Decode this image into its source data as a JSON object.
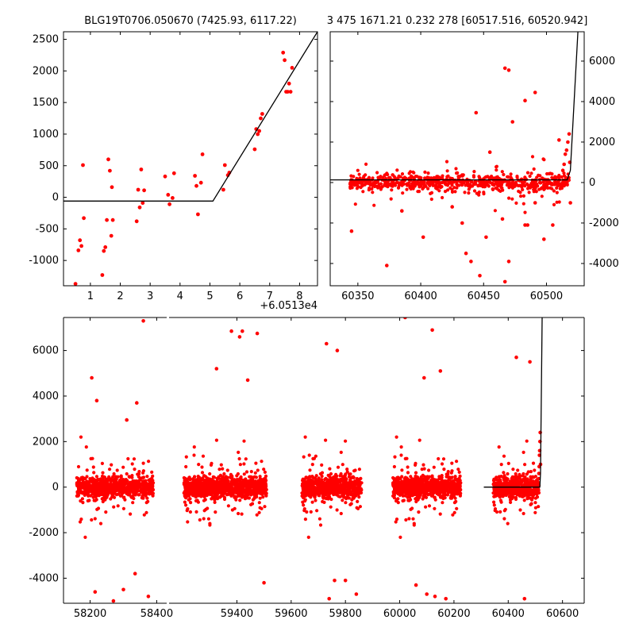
{
  "titles": {
    "left": "BLG19T0706.050670 (7425.93, 6117.22)",
    "right": "3 475 1671.21 0.232 278 [60517.516, 60520.942]"
  },
  "colors": {
    "points": "#ff0000",
    "model": "#000000",
    "frame": "#000000"
  },
  "chart_data": [
    {
      "type": "scatter",
      "panel": "top-left",
      "x_offset_label": "+6.0513e4",
      "xlim": [
        0.1,
        8.6
      ],
      "ylim": [
        -1400,
        2620
      ],
      "xticks": [
        1,
        2,
        3,
        4,
        5,
        6,
        7,
        8
      ],
      "yticks": [
        -1000,
        -500,
        0,
        500,
        1000,
        1500,
        2000,
        2500
      ],
      "grid": false,
      "series": [
        {
          "kind": "points",
          "x": [
            0.5,
            0.6,
            0.65,
            0.7,
            0.75,
            1.4,
            1.45,
            1.5,
            1.55,
            1.6,
            1.65,
            1.7,
            1.75,
            2.55,
            2.6,
            2.65,
            2.75,
            2.8,
            3.5,
            3.6,
            3.65,
            3.75,
            3.8,
            4.5,
            4.55,
            4.6,
            4.7,
            4.75,
            5.45,
            5.5,
            5.6,
            5.65,
            6.5,
            6.55,
            6.6,
            6.65,
            6.7,
            6.75,
            7.45,
            7.5,
            7.55,
            7.6,
            7.65,
            7.7,
            7.75,
            0.78,
            1.72,
            2.7
          ],
          "y": [
            -1370,
            -840,
            -680,
            -770,
            510,
            -1230,
            -850,
            -790,
            -360,
            600,
            420,
            -610,
            -360,
            -380,
            120,
            -160,
            -90,
            110,
            330,
            40,
            -110,
            -10,
            380,
            340,
            180,
            -270,
            230,
            680,
            120,
            510,
            350,
            390,
            760,
            1080,
            1000,
            1050,
            1250,
            1320,
            2290,
            2170,
            1670,
            1670,
            1800,
            1670,
            2050,
            -330,
            160,
            440
          ]
        },
        {
          "kind": "line",
          "x": [
            0.1,
            5.1,
            8.6
          ],
          "y": [
            -60,
            -60,
            2620
          ]
        }
      ]
    },
    {
      "type": "scatter",
      "panel": "top-right",
      "xlim": [
        60328,
        60530
      ],
      "ylim": [
        -5100,
        7450
      ],
      "xticks": [
        60350,
        60400,
        60450,
        60500
      ],
      "yticks": [
        -4000,
        -2000,
        0,
        2000,
        4000,
        6000
      ],
      "grid": false,
      "series": [
        {
          "kind": "points",
          "outliers_x": [
            60345,
            60373,
            60385,
            60402,
            60425,
            60433,
            60436,
            60440,
            60444,
            60447,
            60452,
            60455,
            60465,
            60467,
            60470,
            60473,
            60483,
            60485,
            60491,
            60498,
            60505,
            60510,
            60467,
            60470,
            60483,
            60491
          ],
          "outliers_y": [
            -2400,
            -4100,
            -1400,
            -2700,
            -1200,
            -2000,
            -3500,
            -3900,
            3450,
            -4600,
            -2700,
            1500,
            -1800,
            -4900,
            -3900,
            3000,
            -2100,
            -2100,
            -1000,
            -2800,
            -2100,
            2100,
            5650,
            5550,
            4050,
            4450
          ],
          "late_x": [
            60513,
            60514,
            60515,
            60516,
            60517,
            60518,
            60518.5,
            60519
          ],
          "late_y": [
            600,
            900,
            1400,
            1600,
            2000,
            2400,
            1000,
            -1000
          ]
        },
        {
          "kind": "line",
          "x": [
            60328,
            60516.5,
            60519,
            60525
          ],
          "y": [
            130,
            130,
            600,
            7450
          ]
        }
      ]
    },
    {
      "type": "scatter",
      "panel": "bottom",
      "xlim": [
        58120,
        60680
      ],
      "ylim": [
        -5100,
        7450
      ],
      "xticks": [
        58200,
        58400,
        59400,
        59600,
        59800,
        60000,
        60200,
        60400,
        60600
      ],
      "yticks": [
        -4000,
        -2000,
        0,
        2000,
        4000,
        6000
      ],
      "grid": false,
      "axis_break": {
        "after": 58400,
        "resume": 59150
      },
      "seasons": [
        {
          "start": 58160,
          "end": 58390
        },
        {
          "start": 59205,
          "end": 59510
        },
        {
          "start": 59640,
          "end": 59860
        },
        {
          "start": 59975,
          "end": 60225
        },
        {
          "start": 60345,
          "end": 60515
        }
      ],
      "series": [
        {
          "kind": "points",
          "outliers_x": [
            58205,
            58215,
            58220,
            58270,
            58300,
            58310,
            58335,
            58340,
            58360,
            58375,
            59325,
            59380,
            59410,
            59420,
            59440,
            59475,
            59500,
            59730,
            59740,
            59760,
            59770,
            59800,
            59840,
            60020,
            60060,
            60090,
            60100,
            60120,
            60130,
            60150,
            60170,
            60430,
            60460,
            60480
          ],
          "outliers_y": [
            4800,
            -4600,
            3800,
            -5000,
            -4500,
            2950,
            -3800,
            3700,
            7300,
            -4800,
            5200,
            6850,
            6600,
            6850,
            4700,
            6750,
            -4200,
            6300,
            -4900,
            -4100,
            6000,
            -4100,
            -4700,
            7450,
            -4300,
            4800,
            -4700,
            6900,
            -4800,
            5100,
            -4900,
            5700,
            -4900,
            5500
          ],
          "late_x": [
            60513,
            60514,
            60515,
            60516,
            60517,
            60518,
            60519
          ],
          "late_y": [
            600,
            900,
            1400,
            1600,
            2000,
            2400,
            1000
          ]
        },
        {
          "kind": "line",
          "x": [
            60310,
            60516.5,
            60519,
            60525
          ],
          "y": [
            0,
            0,
            600,
            7450
          ]
        }
      ]
    }
  ]
}
